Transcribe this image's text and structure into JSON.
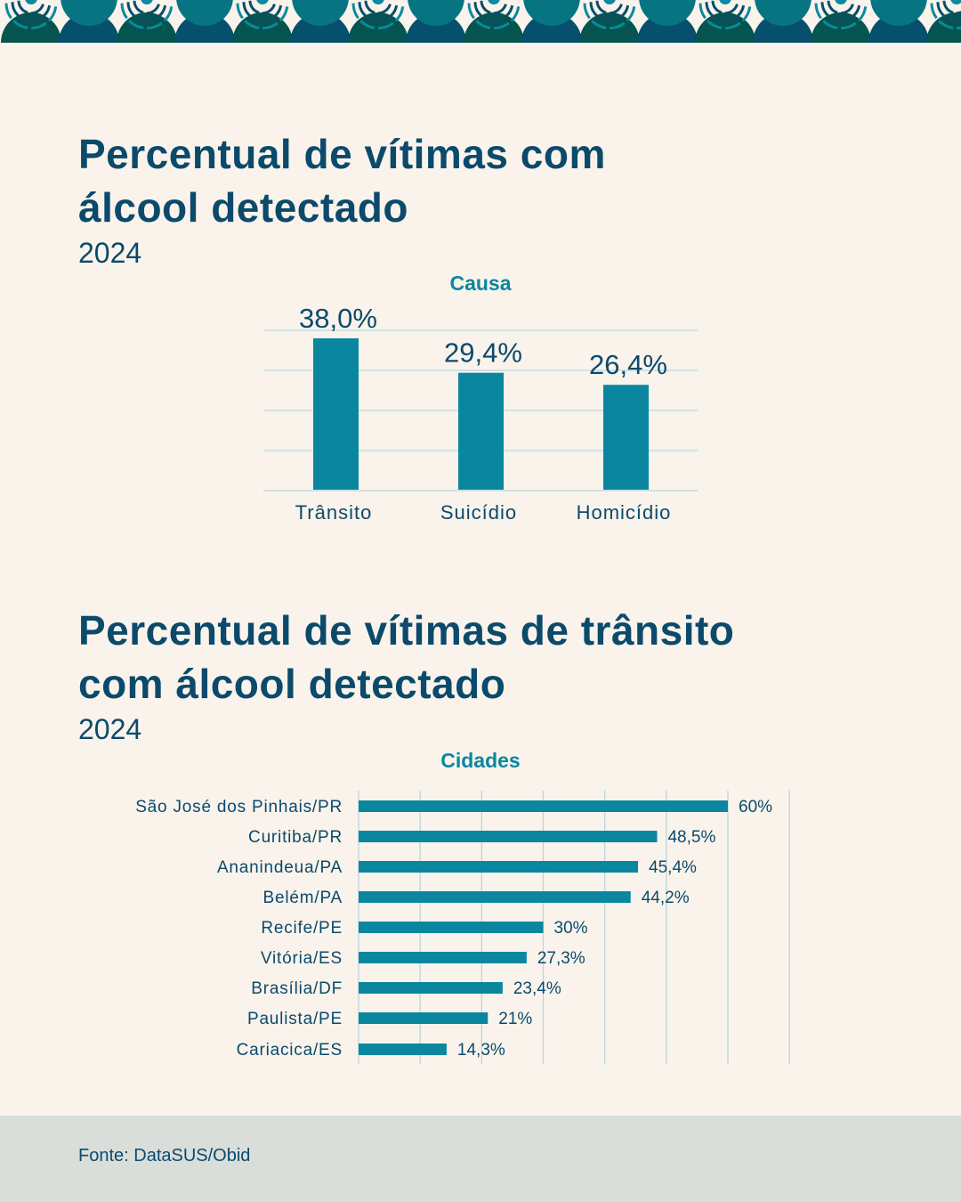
{
  "colors": {
    "background": "#f9f3ec",
    "bar": "#0a879f",
    "text": "#0b4a6b",
    "accent": "#0a879f",
    "footer": "#d9dedb",
    "deco_teal": "#077581",
    "deco_green": "#05544f",
    "deco_navy": "#064f6d",
    "deco_light": "#0a8aa0"
  },
  "chart_data": [
    {
      "type": "bar",
      "title": "Percentual de vítimas com álcool detectado",
      "subtitle": "2024",
      "legend_title": "Causa",
      "categories": [
        "Trânsito",
        "Suicídio",
        "Homicídio"
      ],
      "values": [
        38.0,
        29.4,
        26.4
      ],
      "labels": [
        "38,0%",
        "29,4%",
        "26,4%"
      ],
      "ylim": [
        0,
        40
      ],
      "grid": true,
      "xlabel": "",
      "ylabel": ""
    },
    {
      "type": "bar",
      "orientation": "horizontal",
      "title": "Percentual de vítimas de trânsito com álcool detectado",
      "subtitle": "2024",
      "legend_title": "Cidades",
      "categories": [
        "São José dos Pinhais/PR",
        "Curitiba/PR",
        "Ananindeua/PA",
        "Belém/PA",
        "Recife/PE",
        "Vitória/ES",
        "Brasília/DF",
        "Paulista/PE",
        "Cariacica/ES"
      ],
      "values": [
        60,
        48.5,
        45.4,
        44.2,
        30,
        27.3,
        23.4,
        21,
        14.3
      ],
      "labels": [
        "60%",
        "48,5%",
        "45,4%",
        "44,2%",
        "30%",
        "27,3%",
        "23,4%",
        "21%",
        "14,3%"
      ],
      "xlim": [
        0,
        70
      ],
      "grid": true,
      "xlabel": "",
      "ylabel": ""
    }
  ],
  "headings": {
    "title1_line1": "Percentual de vítimas com",
    "title1_line2": "álcool detectado",
    "title2_line1": "Percentual de vítimas de trânsito",
    "title2_line2": "com álcool detectado"
  },
  "footer": {
    "source": "Fonte: DataSUS/Obid"
  }
}
